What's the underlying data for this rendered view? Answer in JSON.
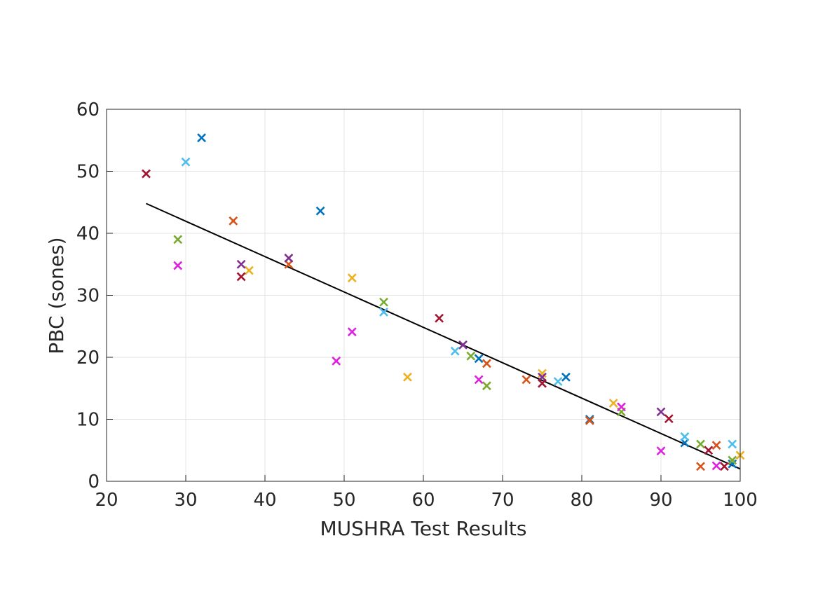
{
  "chart_data": {
    "type": "scatter",
    "title": "",
    "xlabel": "MUSHRA Test Results",
    "ylabel": "PBC (sones)",
    "xlim": [
      20,
      100
    ],
    "ylim": [
      0,
      60
    ],
    "xticks": [
      20,
      30,
      40,
      50,
      60,
      70,
      80,
      90,
      100
    ],
    "yticks": [
      0,
      10,
      20,
      30,
      40,
      50,
      60
    ],
    "grid": true,
    "marker": "x",
    "fit_line": {
      "x": [
        25,
        100
      ],
      "y": [
        44.8,
        2.0
      ],
      "color": "#000000"
    },
    "series": [
      {
        "color": "#0072BD",
        "points": [
          [
            32,
            55.4
          ],
          [
            47,
            43.6
          ],
          [
            67,
            19.8
          ],
          [
            78,
            16.8
          ],
          [
            81,
            10.0
          ],
          [
            93,
            6.2
          ],
          [
            99,
            2.8
          ]
        ]
      },
      {
        "color": "#D95319",
        "points": [
          [
            36,
            42.0
          ],
          [
            43,
            35.0
          ],
          [
            68,
            19.0
          ],
          [
            73,
            16.4
          ],
          [
            81,
            9.8
          ],
          [
            95,
            2.4
          ],
          [
            97,
            5.8
          ]
        ]
      },
      {
        "color": "#EDB120",
        "points": [
          [
            38,
            34.0
          ],
          [
            51,
            32.8
          ],
          [
            58,
            16.8
          ],
          [
            75,
            17.4
          ],
          [
            84,
            12.6
          ],
          [
            100,
            4.2
          ]
        ]
      },
      {
        "color": "#7E2F8E",
        "points": [
          [
            37,
            35.0
          ],
          [
            43,
            36.0
          ],
          [
            65,
            22.0
          ],
          [
            75,
            16.8
          ],
          [
            90,
            11.2
          ]
        ]
      },
      {
        "color": "#77AC30",
        "points": [
          [
            29,
            39.0
          ],
          [
            55,
            28.9
          ],
          [
            66,
            20.2
          ],
          [
            68,
            15.4
          ],
          [
            85,
            11.2
          ],
          [
            95,
            6.0
          ],
          [
            99,
            3.4
          ]
        ]
      },
      {
        "color": "#4DBEEE",
        "points": [
          [
            30,
            51.5
          ],
          [
            55,
            27.3
          ],
          [
            64,
            21.0
          ],
          [
            77,
            16.1
          ],
          [
            93,
            7.2
          ],
          [
            99,
            6.0
          ]
        ]
      },
      {
        "color": "#A2142F",
        "points": [
          [
            25,
            49.6
          ],
          [
            37,
            33.0
          ],
          [
            62,
            26.3
          ],
          [
            75,
            15.8
          ],
          [
            91,
            10.1
          ],
          [
            96,
            5.0
          ],
          [
            98,
            2.4
          ]
        ]
      },
      {
        "color": "#E01FE0",
        "points": [
          [
            29,
            34.8
          ],
          [
            49,
            19.4
          ],
          [
            51,
            24.1
          ],
          [
            67,
            16.4
          ],
          [
            85,
            12.0
          ],
          [
            90,
            4.9
          ],
          [
            97,
            2.5
          ]
        ]
      }
    ]
  }
}
